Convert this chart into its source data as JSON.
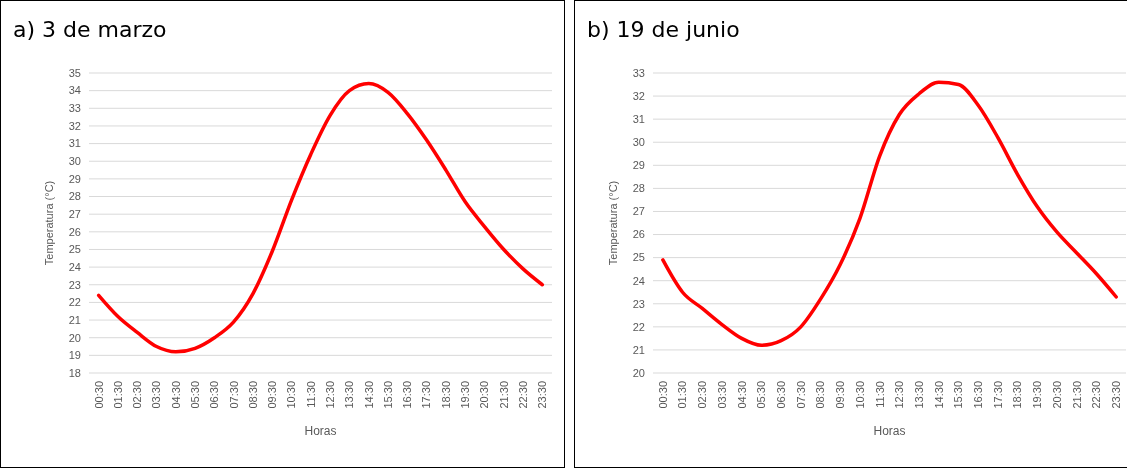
{
  "chart_data": [
    {
      "type": "line",
      "title": "a) 3 de marzo",
      "xlabel": "Horas",
      "ylabel": "Temperatura (°C)",
      "categories": [
        "00:30",
        "01:30",
        "02:30",
        "03:30",
        "04:30",
        "05:30",
        "06:30",
        "07:30",
        "08:30",
        "09:30",
        "10:30",
        "11:30",
        "12:30",
        "13:30",
        "14:30",
        "15:30",
        "16:30",
        "17:30",
        "18:30",
        "19:30",
        "20:30",
        "21:30",
        "22:30",
        "23:30"
      ],
      "series": [
        {
          "color": "#ff0000",
          "values": [
            22.4,
            21.2,
            20.3,
            19.5,
            19.2,
            19.4,
            20.0,
            20.9,
            22.5,
            24.9,
            27.8,
            30.4,
            32.6,
            34.0,
            34.4,
            33.9,
            32.7,
            31.2,
            29.5,
            27.7,
            26.3,
            25.0,
            23.9,
            23.0
          ]
        }
      ],
      "ylim": [
        18,
        35
      ],
      "yticks": [
        18,
        19,
        20,
        21,
        22,
        23,
        24,
        25,
        26,
        27,
        28,
        29,
        30,
        31,
        32,
        33,
        34,
        35
      ],
      "grid": "y"
    },
    {
      "type": "line",
      "title": "b) 19 de junio",
      "xlabel": "Horas",
      "ylabel": "Temperatura (°C)",
      "categories": [
        "00:30",
        "01:30",
        "02:30",
        "03:30",
        "04:30",
        "05:30",
        "06:30",
        "07:30",
        "08:30",
        "09:30",
        "10:30",
        "11:30",
        "12:30",
        "13:30",
        "14:30",
        "15:30",
        "16:30",
        "17:30",
        "18:30",
        "19:30",
        "20:30",
        "21:30",
        "22:30",
        "23:30"
      ],
      "series": [
        {
          "color": "#ff0000",
          "values": [
            24.9,
            23.5,
            22.8,
            22.1,
            21.5,
            21.2,
            21.4,
            22.0,
            23.2,
            24.7,
            26.7,
            29.4,
            31.2,
            32.1,
            32.6,
            32.5,
            31.6,
            30.2,
            28.6,
            27.2,
            26.1,
            25.2,
            24.3,
            23.3
          ]
        }
      ],
      "ylim": [
        20,
        33
      ],
      "yticks": [
        20,
        21,
        22,
        23,
        24,
        25,
        26,
        27,
        28,
        29,
        30,
        31,
        32,
        33
      ],
      "grid": "y"
    }
  ]
}
